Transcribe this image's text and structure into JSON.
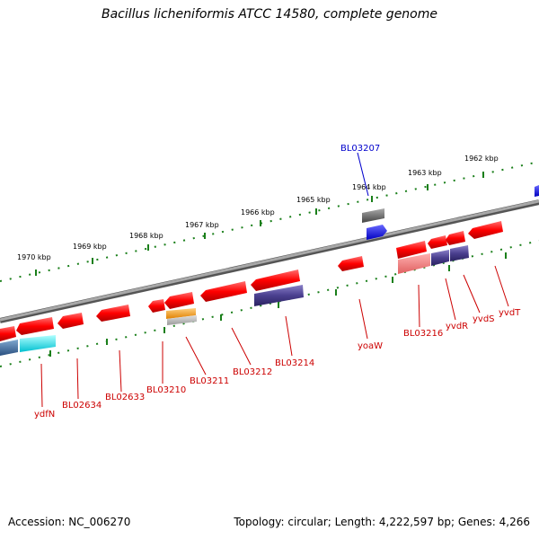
{
  "title": "Bacillus licheniformis ATCC 14580, complete genome",
  "footer": {
    "accession": "Accession: NC_006270",
    "stats": "Topology: circular; Length: 4,222,597 bp; Genes: 4,266"
  },
  "kbp_labels": [
    "1962 kbp",
    "1963 kbp",
    "1964 kbp",
    "1965 kbp",
    "1966 kbp",
    "1967 kbp",
    "1968 kbp",
    "1969 kbp",
    "1970 kbp"
  ],
  "gene_labels": [
    "BL03207",
    "yvdT",
    "yvdS",
    "yvdR",
    "BL03216",
    "yoaW",
    "BL03214",
    "BL03212",
    "BL03211",
    "BL03210",
    "BL02633",
    "BL02634",
    "ydfN"
  ],
  "colors": {
    "forward_gene": "#ff0000",
    "cds_purple": "#4a3f8f",
    "backbone": "#888888",
    "tick": "#1a7f1a",
    "label_red": "#cc0000",
    "label_blue": "#0000cc",
    "cyan": "#00e5ee",
    "orange": "#ff9900",
    "blue_gene": "#0000ff"
  }
}
